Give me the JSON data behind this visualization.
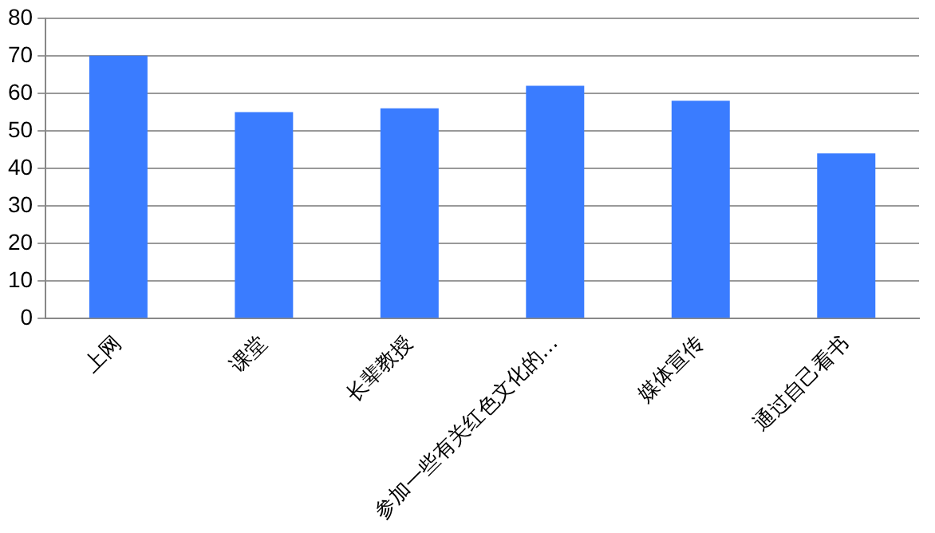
{
  "chart_data": {
    "type": "bar",
    "categories": [
      "上网",
      "课堂",
      "长辈教授",
      "参加一些有关红色文化的…",
      "媒体宣传",
      "通过自己看书"
    ],
    "values": [
      70,
      55,
      56,
      62,
      58,
      44
    ],
    "color": "#3a7cff",
    "ylim": [
      0,
      80
    ],
    "yticks": [
      0,
      10,
      20,
      30,
      40,
      50,
      60,
      70,
      80
    ],
    "grid": "y",
    "legend": false
  }
}
